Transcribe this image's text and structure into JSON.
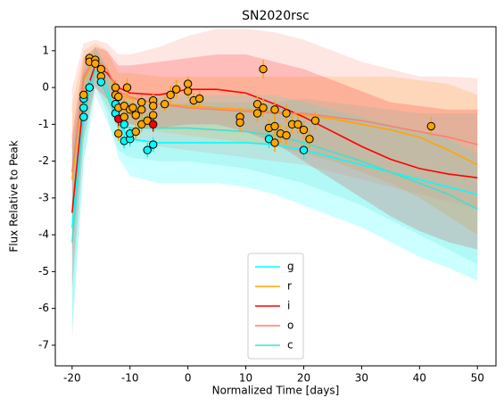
{
  "chart_data": {
    "type": "line",
    "title": "SN2020rsc",
    "x_label": "Normalized Time [days]",
    "y_label": "Flux Relative to Peak",
    "xlim": [
      -22.9,
      53.2
    ],
    "ylim": [
      -7.56,
      1.65
    ],
    "xticks": [
      -20,
      -10,
      0,
      10,
      20,
      30,
      40,
      50
    ],
    "yticks": [
      -7,
      -6,
      -5,
      -4,
      -3,
      -2,
      -1,
      0,
      1
    ],
    "legend": "lower center",
    "x": [
      -20,
      -18,
      -16,
      -14,
      -12,
      -10,
      -5,
      0,
      5,
      10,
      15,
      20,
      25,
      30,
      35,
      40,
      45,
      50
    ],
    "series": [
      {
        "name": "g",
        "color": "#00ffff",
        "values": [
          -3.8,
          -0.6,
          0.7,
          0.0,
          -1.0,
          -1.4,
          -1.5,
          -1.5,
          -1.5,
          -1.5,
          -1.55,
          -1.7,
          -1.9,
          -2.1,
          -2.3,
          -2.5,
          -2.7,
          -2.9
        ],
        "lower": [
          -6.5,
          -2.0,
          0.1,
          -0.7,
          -1.9,
          -2.4,
          -2.6,
          -2.6,
          -2.6,
          -2.7,
          -2.9,
          -3.2,
          -3.5,
          -3.8,
          -4.2,
          -4.6,
          -4.9,
          -5.25
        ],
        "upper": [
          -1.5,
          0.5,
          1.1,
          0.6,
          -0.2,
          -0.4,
          -0.5,
          -0.4,
          -0.4,
          -0.4,
          -0.4,
          -0.3,
          -0.4,
          -0.5,
          -0.6,
          -0.7,
          -0.7,
          -0.7
        ]
      },
      {
        "name": "r",
        "color": "#ffa500",
        "values": [
          -2.5,
          0.2,
          0.8,
          0.5,
          -0.2,
          -0.3,
          -0.45,
          -0.5,
          -0.55,
          -0.6,
          -0.65,
          -0.75,
          -0.85,
          -1.0,
          -1.15,
          -1.35,
          -1.7,
          -2.1
        ],
        "lower": [
          -4.5,
          -0.8,
          0.3,
          -0.1,
          -0.9,
          -1.0,
          -1.2,
          -1.3,
          -1.4,
          -1.5,
          -1.6,
          -1.8,
          -2.0,
          -2.3,
          -2.6,
          -3.0,
          -3.5,
          -4.0
        ],
        "upper": [
          -0.5,
          1.0,
          1.2,
          1.0,
          0.4,
          0.4,
          0.3,
          0.3,
          0.3,
          0.3,
          0.3,
          0.3,
          0.3,
          0.3,
          0.3,
          0.2,
          0.1,
          -0.2
        ]
      },
      {
        "name": "i",
        "color": "#ff0000",
        "values": [
          -3.4,
          -0.3,
          0.6,
          0.4,
          0.0,
          -0.15,
          -0.2,
          -0.05,
          -0.05,
          -0.15,
          -0.45,
          -0.8,
          -1.2,
          -1.6,
          -1.95,
          -2.2,
          -2.35,
          -2.45
        ],
        "lower": [
          -5.5,
          -1.4,
          0.0,
          -0.3,
          -0.8,
          -1.0,
          -1.1,
          -1.0,
          -1.0,
          -1.2,
          -1.5,
          -2.0,
          -2.5,
          -3.0,
          -3.5,
          -3.9,
          -4.2,
          -4.4
        ],
        "upper": [
          -1.3,
          0.8,
          1.1,
          1.0,
          0.6,
          0.6,
          0.7,
          0.8,
          0.9,
          0.9,
          0.7,
          0.5,
          0.2,
          -0.1,
          -0.4,
          -0.5,
          -0.6,
          -0.6
        ]
      },
      {
        "name": "o",
        "color": "#fa8072",
        "values": [
          -2.3,
          0.3,
          0.8,
          0.5,
          -0.1,
          -0.25,
          -0.45,
          -0.55,
          -0.6,
          -0.65,
          -0.7,
          -0.7,
          -0.8,
          -0.9,
          -1.05,
          -1.2,
          -1.35,
          -1.55
        ],
        "lower": [
          -4.5,
          -1.0,
          0.0,
          -0.5,
          -1.2,
          -1.4,
          -1.6,
          -1.7,
          -1.8,
          -1.9,
          -2.0,
          -2.1,
          -2.3,
          -2.5,
          -2.7,
          -2.9,
          -3.1,
          -3.3
        ],
        "upper": [
          0.0,
          1.2,
          1.3,
          1.2,
          0.9,
          0.9,
          1.1,
          1.4,
          1.6,
          1.6,
          1.5,
          1.3,
          1.0,
          0.7,
          0.5,
          0.3,
          0.3,
          0.25
        ]
      },
      {
        "name": "c",
        "color": "#40e0d0",
        "values": [
          -4.2,
          -0.8,
          0.5,
          -0.2,
          -1.0,
          -1.1,
          -1.1,
          -1.1,
          -1.15,
          -1.2,
          -1.3,
          -1.5,
          -1.75,
          -2.0,
          -2.3,
          -2.6,
          -2.9,
          -3.3
        ],
        "lower": [
          -6.9,
          -2.0,
          -0.2,
          -0.9,
          -1.7,
          -1.9,
          -2.0,
          -2.0,
          -2.1,
          -2.2,
          -2.4,
          -2.6,
          -2.9,
          -3.2,
          -3.6,
          -4.0,
          -4.4,
          -4.8
        ],
        "upper": [
          -1.8,
          0.4,
          1.1,
          0.5,
          -0.3,
          -0.3,
          -0.2,
          -0.2,
          -0.2,
          -0.2,
          -0.2,
          -0.4,
          -0.6,
          -0.8,
          -1.0,
          -1.2,
          -1.4,
          -1.8
        ]
      }
    ],
    "points": {
      "x": [
        -18,
        -18,
        -18,
        -18,
        -17,
        -17,
        -17,
        -16,
        -16,
        -15,
        -15,
        -15,
        -12.5,
        -12.5,
        -12.5,
        -12.5,
        -12,
        -12,
        -12,
        -12,
        -11,
        -11,
        -11,
        -11,
        -10.5,
        -10,
        -10,
        -10,
        -9.5,
        -9,
        -9,
        -8,
        -8,
        -8,
        -7,
        -7,
        -6,
        -6,
        -6,
        -6,
        -6,
        -4,
        -3,
        -2,
        0,
        0,
        1,
        2,
        9,
        9,
        12,
        12,
        13,
        13,
        14,
        14,
        15,
        15,
        15,
        16,
        17,
        17,
        18,
        19,
        20,
        20,
        21,
        22,
        42
      ],
      "y": [
        -0.3,
        -0.55,
        -0.8,
        -0.2,
        0.8,
        0.7,
        0.0,
        0.75,
        0.65,
        0.5,
        0.3,
        0.15,
        0.0,
        -0.2,
        -0.45,
        -0.7,
        -0.25,
        -0.55,
        -1.25,
        -0.85,
        -0.5,
        -0.8,
        -1.0,
        -1.45,
        0.0,
        -0.6,
        -1.4,
        -1.25,
        -0.55,
        -0.75,
        -1.2,
        -0.4,
        -0.6,
        -1.0,
        -1.7,
        -0.9,
        -0.35,
        -0.5,
        -0.75,
        -1.0,
        -1.55,
        -0.45,
        -0.2,
        -0.05,
        0.1,
        -0.1,
        -0.35,
        -0.3,
        -0.8,
        -0.95,
        -0.45,
        -0.7,
        0.5,
        -0.55,
        -1.1,
        -1.4,
        -0.6,
        -1.5,
        -1.05,
        -1.25,
        -0.7,
        -1.3,
        -1.0,
        -1.0,
        -1.15,
        -1.7,
        -1.4,
        -0.9,
        -1.05
      ],
      "yerr": [
        0.2,
        0.2,
        0.2,
        0.2,
        0.15,
        0.15,
        0.2,
        0.15,
        0.15,
        0.15,
        0.15,
        0.15,
        0.2,
        0.2,
        0.2,
        0.2,
        0.2,
        0.2,
        0.2,
        0.2,
        0.2,
        0.2,
        0.2,
        0.2,
        0.25,
        0.2,
        0.2,
        0.2,
        0.2,
        0.2,
        0.2,
        0.2,
        0.2,
        0.2,
        0.2,
        0.2,
        0.2,
        0.2,
        0.2,
        0.2,
        0.2,
        0.2,
        0.25,
        0.25,
        0.2,
        0.2,
        0.2,
        0.2,
        0.25,
        0.25,
        0.25,
        0.25,
        0.25,
        0.25,
        0.25,
        0.25,
        0.25,
        0.25,
        0.25,
        0.25,
        0.25,
        0.25,
        0.25,
        0.25,
        0.25,
        0.25,
        0.25,
        0.25,
        0.25
      ],
      "colors": [
        "#00ffff",
        "#00ffff",
        "#00ffff",
        "#ffa500",
        "#ffa500",
        "#ffa500",
        "#00ffff",
        "#ffa500",
        "#ffa500",
        "#ffa500",
        "#ffa500",
        "#00ffff",
        "#ffa500",
        "#ffa500",
        "#00ffff",
        "#00ffff",
        "#ffa500",
        "#ffa500",
        "#ffa500",
        "#ff0000",
        "#ffa500",
        "#ffa500",
        "#00ffff",
        "#00ffff",
        "#ffa500",
        "#ffa500",
        "#00ffff",
        "#00ffff",
        "#ffa500",
        "#ffa500",
        "#ffa500",
        "#ffa500",
        "#ffa500",
        "#ffa500",
        "#00ffff",
        "#ffa500",
        "#ffa500",
        "#ffa500",
        "#ffa500",
        "#ff0000",
        "#00ffff",
        "#ffa500",
        "#ffa500",
        "#ffa500",
        "#ffa500",
        "#ffa500",
        "#ffa500",
        "#ffa500",
        "#ffa500",
        "#ffa500",
        "#ffa500",
        "#ffa500",
        "#ffa500",
        "#ffa500",
        "#ffa500",
        "#00ffff",
        "#ffa500",
        "#ffa500",
        "#ffa500",
        "#ffa500",
        "#ffa500",
        "#ffa500",
        "#ffa500",
        "#ffa500",
        "#ffa500",
        "#00ffff",
        "#ffa500",
        "#ffa500",
        "#ffa500"
      ]
    }
  }
}
